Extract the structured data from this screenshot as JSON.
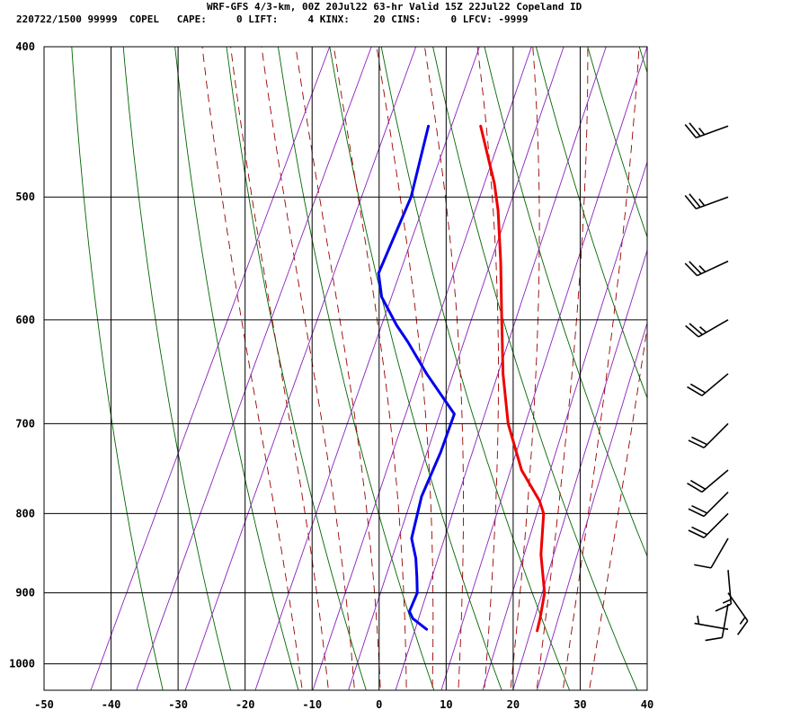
{
  "header": {
    "title_line": "WRF-GFS 4/3-km, 00Z 20Jul22 63-hr Valid 15Z 22Jul22 Copeland ID",
    "index_line": "220722/1500 99999  COPEL   CAPE:     0 LIFT:     4 KINX:    20 CINS:     0 LFCV: -9999"
  },
  "colors": {
    "temperature": "#ee0000",
    "dewpoint": "#0000ee",
    "isotherm": "#000000",
    "isobar": "#000000",
    "dry_adiabat": "#006600",
    "moist_adiabat": "#990000",
    "mixing_ratio": "#8822bb",
    "wind_barb": "#000000"
  },
  "chart_data": {
    "type": "line",
    "subtype": "skew-T log-P diagram",
    "x_axis": {
      "range": [
        -50,
        40
      ],
      "ticks": [
        "-50",
        "-40",
        "-30",
        "-20",
        "-10",
        "0",
        "10",
        "20",
        "30",
        "40"
      ]
    },
    "y_axis": {
      "range": [
        400,
        1040
      ],
      "scale": "log",
      "inverted": true,
      "ticks": [
        "400",
        "500",
        "600",
        "700",
        "800",
        "900",
        "1000"
      ]
    },
    "grid": true,
    "series": [
      {
        "role": "temperature",
        "points": [
          {
            "p": 450,
            "t": -21.9
          },
          {
            "p": 490,
            "t": -15.9
          },
          {
            "p": 510,
            "t": -13.5
          },
          {
            "p": 550,
            "t": -9.6
          },
          {
            "p": 600,
            "t": -5.4
          },
          {
            "p": 650,
            "t": -1.5
          },
          {
            "p": 700,
            "t": 2.7
          },
          {
            "p": 750,
            "t": 7.9
          },
          {
            "p": 785,
            "t": 12.7
          },
          {
            "p": 800,
            "t": 14.2
          },
          {
            "p": 850,
            "t": 16.6
          },
          {
            "p": 900,
            "t": 19.8
          },
          {
            "p": 935,
            "t": 20.9
          },
          {
            "p": 952,
            "t": 21.3
          }
        ]
      },
      {
        "role": "dewpoint",
        "points": [
          {
            "p": 450,
            "t": -29.7
          },
          {
            "p": 500,
            "t": -27.4
          },
          {
            "p": 560,
            "t": -27.0
          },
          {
            "p": 580,
            "t": -24.9
          },
          {
            "p": 605,
            "t": -20.7
          },
          {
            "p": 620,
            "t": -17.9
          },
          {
            "p": 650,
            "t": -12.9
          },
          {
            "p": 690,
            "t": -6.0
          },
          {
            "p": 730,
            "t": -5.4
          },
          {
            "p": 780,
            "t": -5.2
          },
          {
            "p": 830,
            "t": -3.8
          },
          {
            "p": 855,
            "t": -1.8
          },
          {
            "p": 880,
            "t": -0.3
          },
          {
            "p": 900,
            "t": 0.8
          },
          {
            "p": 925,
            "t": 0.9
          },
          {
            "p": 935,
            "t": 1.9
          },
          {
            "p": 950,
            "t": 4.7
          }
        ]
      }
    ],
    "wind_barbs": [
      {
        "p": 450,
        "dir": 250,
        "kt": 25
      },
      {
        "p": 500,
        "dir": 250,
        "kt": 25
      },
      {
        "p": 550,
        "dir": 245,
        "kt": 25
      },
      {
        "p": 600,
        "dir": 240,
        "kt": 25
      },
      {
        "p": 650,
        "dir": 230,
        "kt": 20
      },
      {
        "p": 700,
        "dir": 225,
        "kt": 20
      },
      {
        "p": 750,
        "dir": 230,
        "kt": 20
      },
      {
        "p": 775,
        "dir": 225,
        "kt": 20
      },
      {
        "p": 800,
        "dir": 225,
        "kt": 20
      },
      {
        "p": 830,
        "dir": 210,
        "kt": 10
      },
      {
        "p": 870,
        "dir": 175,
        "kt": 15
      },
      {
        "p": 900,
        "dir": 145,
        "kt": 15
      },
      {
        "p": 915,
        "dir": 190,
        "kt": 10
      },
      {
        "p": 950,
        "dir": 280,
        "kt": 5
      }
    ],
    "dry_adiabats_K": [
      240,
      250,
      260,
      270,
      280,
      290,
      300,
      310,
      320,
      330,
      340,
      350,
      360,
      370
    ],
    "moist_adiabats_C": [
      -12,
      -8,
      -4,
      0,
      4,
      8,
      12,
      16,
      20,
      24,
      28,
      32
    ],
    "mixing_ratios_gkg": [
      0.1,
      0.2,
      0.4,
      1,
      2,
      3,
      5,
      8,
      12,
      16,
      20
    ]
  }
}
